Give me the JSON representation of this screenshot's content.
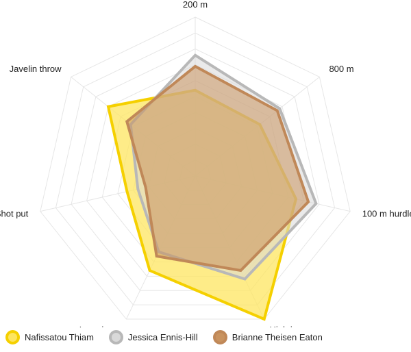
{
  "chart_data": {
    "type": "radar",
    "axes": [
      "200 m",
      "800 m",
      "100 m hurdles",
      "High jump",
      "Long jump",
      "Shot put",
      "Javelin throw"
    ],
    "levels": 10,
    "max": 10,
    "series": [
      {
        "name": "Nafissatou Thiam",
        "values": [
          5.4,
          5.2,
          6.5,
          10.0,
          6.6,
          4.4,
          7.0
        ],
        "fill": "#fde560",
        "stroke": "#f5d000"
      },
      {
        "name": "Jessica Ennis-Hill",
        "values": [
          7.6,
          6.8,
          7.8,
          7.2,
          5.3,
          3.7,
          5.2
        ],
        "fill": "#d9d9d9",
        "stroke": "#b8b8b8"
      },
      {
        "name": "Brianne Theisen Eaton",
        "values": [
          6.9,
          6.6,
          7.3,
          6.6,
          5.6,
          3.2,
          5.5
        ],
        "fill": "#c9935f",
        "stroke": "#c08858"
      }
    ],
    "legend_position": "bottom-left",
    "grid": true
  }
}
